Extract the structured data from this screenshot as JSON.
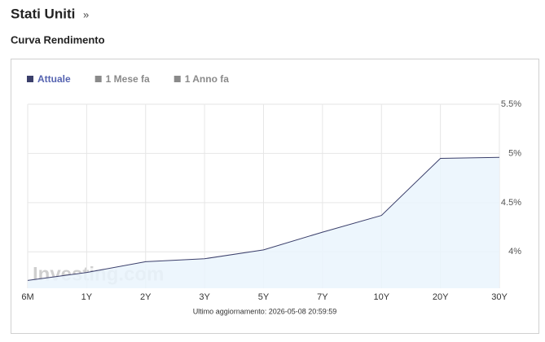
{
  "header": {
    "title": "Stati Uniti",
    "link": "»",
    "subtitle": "Curva Rendimento"
  },
  "chart_data": {
    "type": "line",
    "categories": [
      "6M",
      "1Y",
      "2Y",
      "3Y",
      "5Y",
      "7Y",
      "10Y",
      "20Y",
      "30Y"
    ],
    "series": [
      {
        "name": "Attuale",
        "color": "#3b3f6b",
        "values": [
          3.71,
          3.79,
          3.9,
          3.93,
          4.02,
          4.2,
          4.37,
          4.95,
          4.96
        ]
      }
    ],
    "legend_inactive": [
      {
        "name": "1 Mese fa",
        "color": "#8a8a8a"
      },
      {
        "name": "1 Anno fa",
        "color": "#8a8a8a"
      }
    ],
    "area_color": "#eaf4fd",
    "ylim": [
      3.63,
      5.5
    ],
    "yticks": [
      {
        "value": 4,
        "label": "4%"
      },
      {
        "value": 4.5,
        "label": "4.5%"
      },
      {
        "value": 5,
        "label": "5%"
      },
      {
        "value": 5.5,
        "label": "5.5%"
      }
    ],
    "grid": true,
    "watermark": "Investing.com",
    "footnote": "Ultimo aggiornamento: 2026-05-08 20:59:59"
  }
}
